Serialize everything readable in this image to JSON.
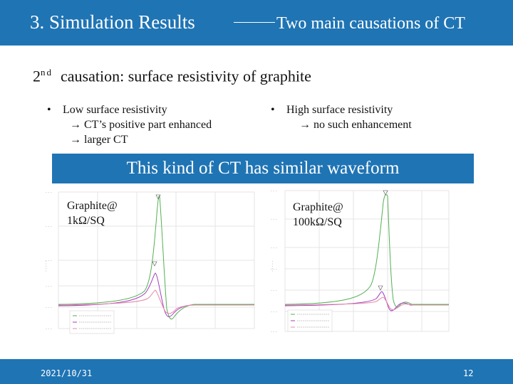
{
  "header": {
    "title": "3. Simulation Results",
    "subtitle": "Two main causations of CT"
  },
  "heading": {
    "ordinal": "2",
    "ordinal_suffix": "nd",
    "text": "causation:  surface resistivity of graphite"
  },
  "bullets": {
    "left": {
      "lines": [
        "Low surface resistivity",
        "→ CT’s positive part enhanced",
        "→ larger CT"
      ]
    },
    "right": {
      "lines": [
        "High surface resistivity",
        "→ no such enhancement"
      ]
    }
  },
  "banner": {
    "text": "This kind of CT has similar waveform"
  },
  "plots": {
    "left": {
      "label_line1": "Graphite@",
      "label_line2": "1kΩ/SQ"
    },
    "right": {
      "label_line1": "Graphite@",
      "label_line2": "100kΩ/SQ"
    }
  },
  "footer": {
    "date": "2021/10/31",
    "page": "12"
  },
  "colors": {
    "accent": "#1f74b4",
    "green_curve": "#52b052",
    "purple_curve": "#a23fc0",
    "pink_curve": "#e58aa8"
  }
}
